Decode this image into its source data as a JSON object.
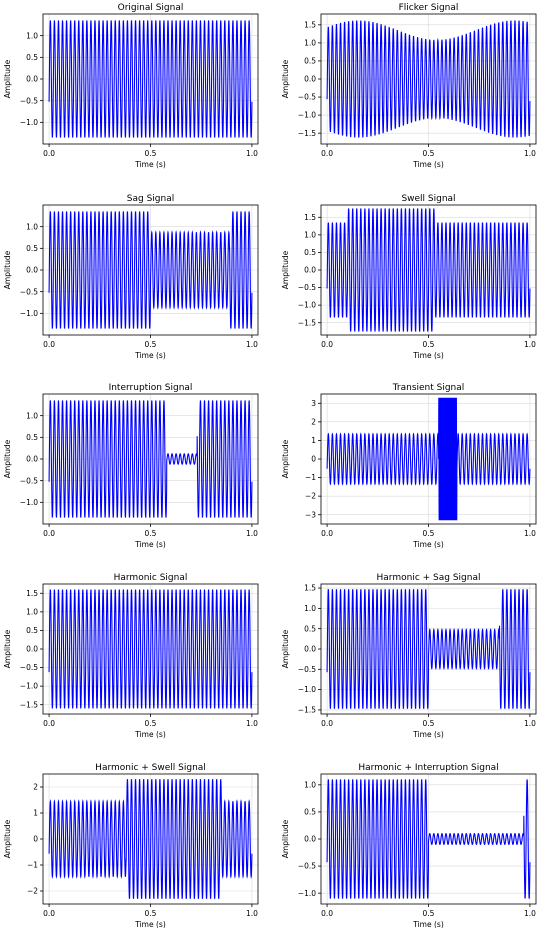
{
  "style": {
    "line_color": "#0000ff",
    "grid_color": "#d9d9d9"
  },
  "chart_data": [
    {
      "type": "line",
      "title": "Original Signal",
      "xlabel": "Time (s)",
      "ylabel": "Amplitude",
      "xlim": [
        -0.03,
        1.03
      ],
      "ylim": [
        -1.5,
        1.5
      ],
      "grid": true,
      "xticks": [
        0.0,
        0.5,
        1.0
      ],
      "xtick_labels": [
        "0.0",
        "0.5",
        "1.0"
      ],
      "yticks": [
        -1.0,
        -0.5,
        0.0,
        0.5,
        1.0
      ],
      "ytick_labels": [
        "−1.0",
        "−0.5",
        "0.0",
        "0.5",
        "1.0"
      ],
      "signal": {
        "frequency_hz": 50,
        "duration_s": 1.0,
        "base_amplitude": 1.35,
        "segments": []
      }
    },
    {
      "type": "line",
      "title": "Flicker Signal",
      "xlabel": "Time (s)",
      "ylabel": "Amplitude",
      "xlim": [
        -0.03,
        1.03
      ],
      "ylim": [
        -1.8,
        1.8
      ],
      "grid": true,
      "xticks": [
        0.0,
        0.5,
        1.0
      ],
      "xtick_labels": [
        "0.0",
        "0.5",
        "1.0"
      ],
      "yticks": [
        -1.5,
        -1.0,
        -0.5,
        0.0,
        0.5,
        1.0,
        1.5
      ],
      "ytick_labels": [
        "−1.5",
        "−1.0",
        "−0.5",
        "0.0",
        "0.5",
        "1.0",
        "1.5"
      ],
      "signal": {
        "frequency_hz": 50,
        "duration_s": 1.0,
        "base_amplitude": 1.35,
        "flicker": {
          "mean": 1.35,
          "depth": 0.27,
          "frequency_hz": 1.3
        },
        "segments": []
      }
    },
    {
      "type": "line",
      "title": "Sag Signal",
      "xlabel": "Time (s)",
      "ylabel": "Amplitude",
      "xlim": [
        -0.03,
        1.03
      ],
      "ylim": [
        -1.5,
        1.5
      ],
      "grid": true,
      "xticks": [
        0.0,
        0.5,
        1.0
      ],
      "xtick_labels": [
        "0.0",
        "0.5",
        "1.0"
      ],
      "yticks": [
        -1.0,
        -0.5,
        0.0,
        0.5,
        1.0
      ],
      "ytick_labels": [
        "−1.0",
        "−0.5",
        "0.0",
        "0.5",
        "1.0"
      ],
      "signal": {
        "frequency_hz": 50,
        "duration_s": 1.0,
        "base_amplitude": 1.35,
        "segments": [
          {
            "start": 0.5,
            "end": 0.89,
            "amplitude": 0.87
          }
        ]
      }
    },
    {
      "type": "line",
      "title": "Swell Signal",
      "xlabel": "Time (s)",
      "ylabel": "Amplitude",
      "xlim": [
        -0.03,
        1.03
      ],
      "ylim": [
        -1.85,
        1.85
      ],
      "grid": true,
      "xticks": [
        0.0,
        0.5,
        1.0
      ],
      "xtick_labels": [
        "0.0",
        "0.5",
        "1.0"
      ],
      "yticks": [
        -1.5,
        -1.0,
        -0.5,
        0.0,
        0.5,
        1.0,
        1.5
      ],
      "ytick_labels": [
        "−1.5",
        "−1.0",
        "−0.5",
        "0.0",
        "0.5",
        "1.0",
        "1.5"
      ],
      "signal": {
        "frequency_hz": 50,
        "duration_s": 1.0,
        "base_amplitude": 1.35,
        "segments": [
          {
            "start": 0.1,
            "end": 0.53,
            "amplitude": 1.75
          }
        ]
      }
    },
    {
      "type": "line",
      "title": "Interruption Signal",
      "xlabel": "Time (s)",
      "ylabel": "Amplitude",
      "xlim": [
        -0.03,
        1.03
      ],
      "ylim": [
        -1.5,
        1.5
      ],
      "grid": true,
      "xticks": [
        0.0,
        0.5,
        1.0
      ],
      "xtick_labels": [
        "0.0",
        "0.5",
        "1.0"
      ],
      "yticks": [
        -1.0,
        -0.5,
        0.0,
        0.5,
        1.0
      ],
      "ytick_labels": [
        "−1.0",
        "−0.5",
        "0.0",
        "0.5",
        "1.0"
      ],
      "signal": {
        "frequency_hz": 50,
        "duration_s": 1.0,
        "base_amplitude": 1.35,
        "segments": [
          {
            "start": 0.58,
            "end": 0.73,
            "amplitude": 0.12
          }
        ]
      }
    },
    {
      "type": "line",
      "title": "Transient Signal",
      "xlabel": "Time (s)",
      "ylabel": "Amplitude",
      "xlim": [
        -0.03,
        1.03
      ],
      "ylim": [
        -3.5,
        3.5
      ],
      "grid": true,
      "xticks": [
        0.0,
        0.5,
        1.0
      ],
      "xtick_labels": [
        "0.0",
        "0.5",
        "1.0"
      ],
      "yticks": [
        -3,
        -2,
        -1,
        0,
        1,
        2,
        3
      ],
      "ytick_labels": [
        "−3",
        "−2",
        "−1",
        "0",
        "1",
        "2",
        "3"
      ],
      "signal": {
        "frequency_hz": 50,
        "duration_s": 1.0,
        "base_amplitude": 1.35,
        "transient": {
          "start": 0.55,
          "end": 0.64,
          "amplitude": 3.3,
          "frequency_hz": 300
        },
        "segments": []
      }
    },
    {
      "type": "line",
      "title": "Harmonic Signal",
      "xlabel": "Time (s)",
      "ylabel": "Amplitude",
      "xlim": [
        -0.03,
        1.03
      ],
      "ylim": [
        -1.75,
        1.75
      ],
      "grid": true,
      "xticks": [
        0.0,
        0.5,
        1.0
      ],
      "xtick_labels": [
        "0.0",
        "0.5",
        "1.0"
      ],
      "yticks": [
        -1.5,
        -1.0,
        -0.5,
        0.0,
        0.5,
        1.0,
        1.5
      ],
      "ytick_labels": [
        "−1.5",
        "−1.0",
        "−0.5",
        "0.0",
        "0.5",
        "1.0",
        "1.5"
      ],
      "signal": {
        "frequency_hz": 50,
        "duration_s": 1.0,
        "base_amplitude": 1.6,
        "segments": []
      }
    },
    {
      "type": "line",
      "title": "Harmonic + Sag Signal",
      "xlabel": "Time (s)",
      "ylabel": "Amplitude",
      "xlim": [
        -0.03,
        1.03
      ],
      "ylim": [
        -1.6,
        1.6
      ],
      "grid": true,
      "xticks": [
        0.0,
        0.5,
        1.0
      ],
      "xtick_labels": [
        "0.0",
        "0.5",
        "1.0"
      ],
      "yticks": [
        -1.5,
        -1.0,
        -0.5,
        0.0,
        0.5,
        1.0,
        1.5
      ],
      "ytick_labels": [
        "−1.5",
        "−1.0",
        "−0.5",
        "0.0",
        "0.5",
        "1.0",
        "1.5"
      ],
      "signal": {
        "frequency_hz": 50,
        "duration_s": 1.0,
        "base_amplitude": 1.47,
        "segments": [
          {
            "start": 0.5,
            "end": 0.85,
            "amplitude": 0.48
          }
        ]
      }
    },
    {
      "type": "line",
      "title": "Harmonic + Swell Signal",
      "xlabel": "Time (s)",
      "ylabel": "Amplitude",
      "xlim": [
        -0.03,
        1.03
      ],
      "ylim": [
        -2.5,
        2.5
      ],
      "grid": true,
      "xticks": [
        0.0,
        0.5,
        1.0
      ],
      "xtick_labels": [
        "0.0",
        "0.5",
        "1.0"
      ],
      "yticks": [
        -2,
        -1,
        0,
        1,
        2
      ],
      "ytick_labels": [
        "−2",
        "−1",
        "0",
        "1",
        "2"
      ],
      "signal": {
        "frequency_hz": 50,
        "duration_s": 1.0,
        "base_amplitude": 1.45,
        "segments": [
          {
            "start": 0.38,
            "end": 0.85,
            "amplitude": 2.3
          }
        ]
      }
    },
    {
      "type": "line",
      "title": "Harmonic + Interruption Signal",
      "xlabel": "Time (s)",
      "ylabel": "Amplitude",
      "xlim": [
        -0.03,
        1.03
      ],
      "ylim": [
        -1.2,
        1.2
      ],
      "grid": true,
      "xticks": [
        0.0,
        0.5,
        1.0
      ],
      "xtick_labels": [
        "0.0",
        "0.5",
        "1.0"
      ],
      "yticks": [
        -1.0,
        -0.5,
        0.0,
        0.5,
        1.0
      ],
      "ytick_labels": [
        "−1.0",
        "−0.5",
        "0.0",
        "0.5",
        "1.0"
      ],
      "signal": {
        "frequency_hz": 50,
        "duration_s": 1.0,
        "base_amplitude": 1.1,
        "segments": [
          {
            "start": 0.5,
            "end": 0.97,
            "amplitude": 0.1
          }
        ]
      }
    }
  ]
}
